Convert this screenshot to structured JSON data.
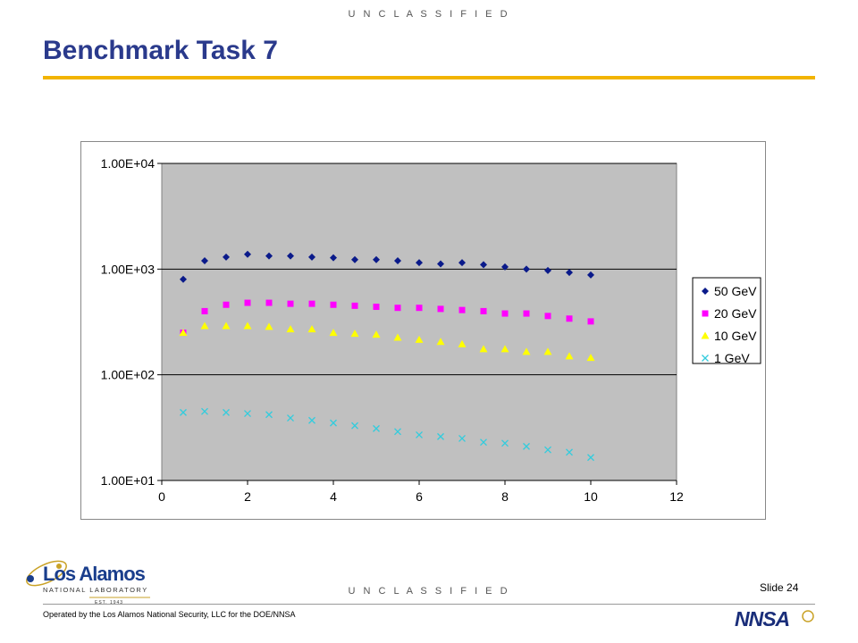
{
  "classification_top": "U N C L A S S I F I E D",
  "classification_bottom": "U N C L A S S I F I E D",
  "title": "Benchmark Task 7",
  "slide_number": "Slide 24",
  "operated_by": "Operated by the Los Alamos National Security, LLC for the DOE/NNSA",
  "logo_lanl": {
    "line1": "Los Alamos",
    "line2": "NATIONAL LABORATORY",
    "est": "EST. 1943"
  },
  "logo_nnsa": "NNSA",
  "colors": {
    "accent_rule": "#f2b400",
    "title": "#2a3a8c",
    "plot_bg": "#c0c0c0"
  },
  "chart_data": {
    "type": "scatter",
    "title": "",
    "xlabel": "",
    "ylabel": "",
    "xlim": [
      0,
      12
    ],
    "ylim": [
      10,
      10000
    ],
    "yscale": "log",
    "x_ticks": [
      0,
      2,
      4,
      6,
      8,
      10,
      12
    ],
    "x_tick_labels": [
      "0",
      "2",
      "4",
      "6",
      "8",
      "10",
      "12"
    ],
    "y_ticks": [
      10,
      100,
      1000,
      10000
    ],
    "y_tick_labels": [
      "1.00E+01",
      "1.00E+02",
      "1.00E+03",
      "1.00E+04"
    ],
    "grid": "horizontal major",
    "legend_position": "right",
    "x": [
      0.5,
      1,
      1.5,
      2,
      2.5,
      3,
      3.5,
      4,
      4.5,
      5,
      5.5,
      6,
      6.5,
      7,
      7.5,
      8,
      8.5,
      9,
      9.5,
      10
    ],
    "series": [
      {
        "name": "50 GeV",
        "marker": "diamond",
        "color": "#0a1a8a",
        "values": [
          800,
          1200,
          1300,
          1380,
          1330,
          1330,
          1300,
          1280,
          1230,
          1230,
          1200,
          1150,
          1120,
          1150,
          1100,
          1050,
          1000,
          970,
          930,
          880
        ]
      },
      {
        "name": "20 GeV",
        "marker": "square",
        "color": "#ff00ff",
        "values": [
          250,
          400,
          460,
          480,
          480,
          470,
          470,
          460,
          450,
          440,
          430,
          430,
          420,
          410,
          400,
          380,
          380,
          360,
          340,
          320
        ]
      },
      {
        "name": "10 GeV",
        "marker": "triangle",
        "color": "#ffff00",
        "values": [
          250,
          290,
          290,
          290,
          285,
          270,
          270,
          250,
          245,
          240,
          225,
          215,
          205,
          195,
          175,
          175,
          165,
          165,
          150,
          145
        ]
      },
      {
        "name": "1 GeV",
        "marker": "x",
        "color": "#33ccdd",
        "values": [
          44,
          45,
          44,
          43,
          42,
          39,
          37,
          35,
          33,
          31,
          29,
          27,
          26,
          25,
          23,
          22.5,
          21,
          19.5,
          18.5,
          16.5
        ]
      }
    ]
  }
}
